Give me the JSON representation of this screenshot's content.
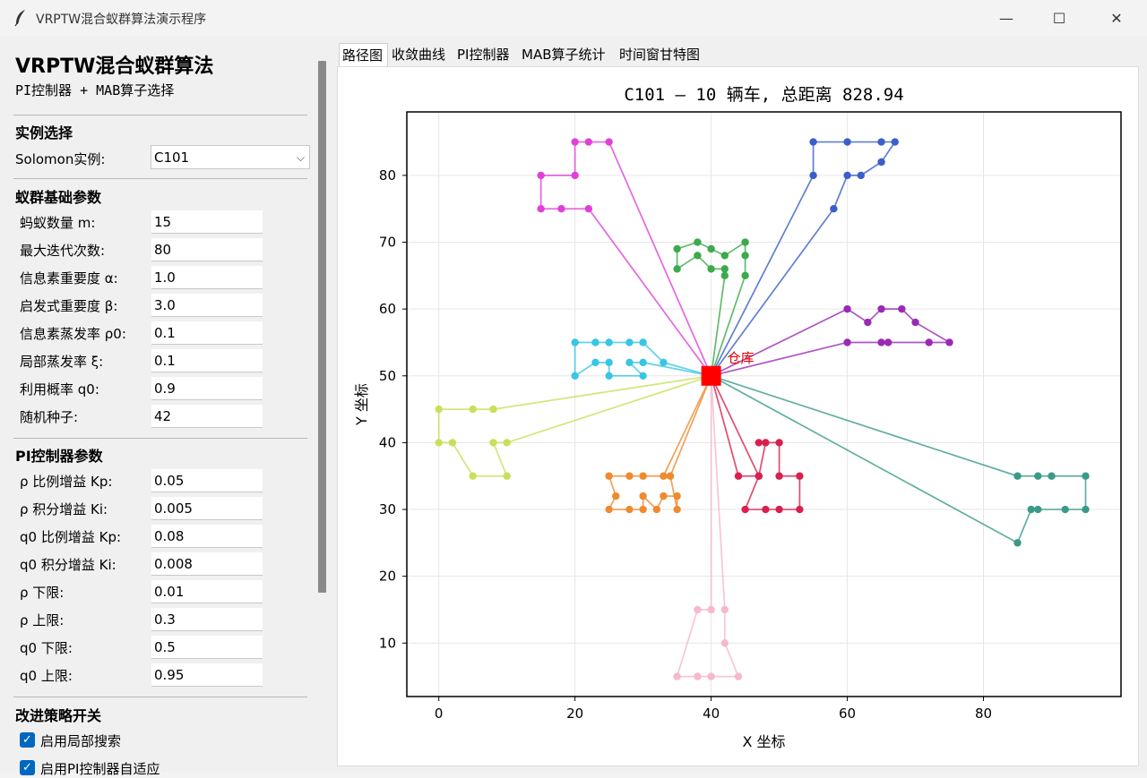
{
  "window": {
    "title": "VRPTW混合蚁群算法演示程序",
    "minimize": "—",
    "maximize": "☐",
    "close": "✕"
  },
  "panel": {
    "heading": "VRPTW混合蚁群算法",
    "subheading": "PI控制器 + MAB算子选择",
    "instance_section": "实例选择",
    "instance_label": "Solomon实例:",
    "instance_value": "C101",
    "aco_section": "蚁群基础参数",
    "aco_params": [
      {
        "label": "蚂蚁数量 m:",
        "value": "15"
      },
      {
        "label": "最大迭代次数:",
        "value": "80"
      },
      {
        "label": "信息素重要度 α:",
        "value": "1.0"
      },
      {
        "label": "启发式重要度 β:",
        "value": "3.0"
      },
      {
        "label": "信息素蒸发率 ρ0:",
        "value": "0.1"
      },
      {
        "label": "局部蒸发率 ξ:",
        "value": "0.1"
      },
      {
        "label": "利用概率 q0:",
        "value": "0.9"
      },
      {
        "label": "随机种子:",
        "value": "42"
      }
    ],
    "pi_section": "PI控制器参数",
    "pi_params": [
      {
        "label": "ρ 比例增益 Kp:",
        "value": "0.05"
      },
      {
        "label": "ρ 积分增益 Ki:",
        "value": "0.005"
      },
      {
        "label": "q0 比例增益 Kp:",
        "value": "0.08"
      },
      {
        "label": "q0 积分增益 Ki:",
        "value": "0.008"
      },
      {
        "label": "ρ 下限:",
        "value": "0.01"
      },
      {
        "label": "ρ 上限:",
        "value": "0.3"
      },
      {
        "label": "q0 下限:",
        "value": "0.5"
      },
      {
        "label": "q0 上限:",
        "value": "0.95"
      }
    ],
    "strategy_section": "改进策略开关",
    "checkboxes": [
      {
        "label": "启用局部搜索",
        "checked": true
      },
      {
        "label": "启用PI控制器自适应",
        "checked": true
      }
    ]
  },
  "tabs": [
    "路径图",
    "收敛曲线",
    "PI控制器",
    "MAB算子统计",
    "时间窗甘特图"
  ],
  "chart_data": {
    "type": "scatter",
    "title": "C101 — 10 辆车, 总距离 828.94",
    "xlabel": "X 坐标",
    "ylabel": "Y 坐标",
    "xlim": [
      -4.7,
      100.2
    ],
    "ylim": [
      2.0,
      89.5
    ],
    "xticks": [
      0,
      20,
      40,
      60,
      80
    ],
    "yticks": [
      10,
      20,
      30,
      40,
      50,
      60,
      70,
      80
    ],
    "grid": true,
    "depot": {
      "x": 40,
      "y": 50,
      "label": "仓库",
      "color": "#ff0000"
    },
    "routes": [
      {
        "color": "#e040d8",
        "points": [
          [
            40,
            50
          ],
          [
            25,
            85
          ],
          [
            22,
            85
          ],
          [
            20,
            85
          ],
          [
            20,
            80
          ],
          [
            15,
            80
          ],
          [
            15,
            75
          ],
          [
            18,
            75
          ],
          [
            22,
            75
          ],
          [
            40,
            50
          ]
        ]
      },
      {
        "color": "#3a5fc8",
        "points": [
          [
            40,
            50
          ],
          [
            55,
            80
          ],
          [
            55,
            85
          ],
          [
            60,
            85
          ],
          [
            65,
            85
          ],
          [
            67,
            85
          ],
          [
            65,
            82
          ],
          [
            62,
            80
          ],
          [
            60,
            80
          ],
          [
            58,
            75
          ],
          [
            40,
            50
          ]
        ]
      },
      {
        "color": "#3aaa4a",
        "points": [
          [
            40,
            50
          ],
          [
            42,
            65
          ],
          [
            42,
            66
          ],
          [
            40,
            66
          ],
          [
            38,
            68
          ],
          [
            35,
            66
          ],
          [
            35,
            69
          ],
          [
            38,
            70
          ],
          [
            40,
            69
          ],
          [
            42,
            68
          ],
          [
            45,
            70
          ],
          [
            45,
            68
          ],
          [
            45,
            65
          ],
          [
            40,
            50
          ]
        ]
      },
      {
        "color": "#9a2ab5",
        "points": [
          [
            40,
            50
          ],
          [
            60,
            60
          ],
          [
            63,
            58
          ],
          [
            65,
            60
          ],
          [
            68,
            60
          ],
          [
            70,
            58
          ],
          [
            75,
            55
          ],
          [
            72,
            55
          ],
          [
            66,
            55
          ],
          [
            65,
            55
          ],
          [
            60,
            55
          ],
          [
            40,
            50
          ]
        ]
      },
      {
        "color": "#38c6e4",
        "points": [
          [
            40,
            50
          ],
          [
            33,
            52
          ],
          [
            30,
            55
          ],
          [
            28,
            55
          ],
          [
            25,
            55
          ],
          [
            23,
            55
          ],
          [
            20,
            55
          ],
          [
            20,
            50
          ],
          [
            23,
            52
          ],
          [
            25,
            52
          ],
          [
            25,
            50
          ],
          [
            30,
            50
          ],
          [
            28,
            52
          ],
          [
            30,
            52
          ],
          [
            40,
            50
          ]
        ]
      },
      {
        "color": "#c7e05a",
        "points": [
          [
            40,
            50
          ],
          [
            8,
            45
          ],
          [
            5,
            45
          ],
          [
            0,
            45
          ],
          [
            0,
            40
          ],
          [
            2,
            40
          ],
          [
            5,
            35
          ],
          [
            10,
            35
          ],
          [
            8,
            40
          ],
          [
            10,
            40
          ],
          [
            40,
            50
          ]
        ]
      },
      {
        "color": "#ef8a2e",
        "points": [
          [
            40,
            50
          ],
          [
            33,
            35
          ],
          [
            30,
            35
          ],
          [
            28,
            35
          ],
          [
            25,
            35
          ],
          [
            26,
            32
          ],
          [
            25,
            30
          ],
          [
            28,
            30
          ],
          [
            30,
            30
          ],
          [
            30,
            32
          ],
          [
            32,
            30
          ],
          [
            33,
            32
          ],
          [
            35,
            32
          ],
          [
            35,
            30
          ],
          [
            34,
            35
          ],
          [
            40,
            50
          ]
        ]
      },
      {
        "color": "#d82050",
        "points": [
          [
            40,
            50
          ],
          [
            44,
            35
          ],
          [
            47,
            35
          ],
          [
            48,
            40
          ],
          [
            47,
            40
          ],
          [
            50,
            40
          ],
          [
            50,
            35
          ],
          [
            53,
            35
          ],
          [
            53,
            30
          ],
          [
            50,
            30
          ],
          [
            48,
            30
          ],
          [
            45,
            30
          ],
          [
            47,
            35
          ],
          [
            40,
            50
          ]
        ]
      },
      {
        "color": "#3a9a8a",
        "points": [
          [
            40,
            50
          ],
          [
            85,
            35
          ],
          [
            88,
            35
          ],
          [
            90,
            35
          ],
          [
            95,
            35
          ],
          [
            95,
            30
          ],
          [
            92,
            30
          ],
          [
            88,
            30
          ],
          [
            87,
            30
          ],
          [
            85,
            25
          ],
          [
            40,
            50
          ]
        ]
      },
      {
        "color": "#f5b8cc",
        "points": [
          [
            40,
            50
          ],
          [
            40,
            15
          ],
          [
            38,
            15
          ],
          [
            35,
            5
          ],
          [
            38,
            5
          ],
          [
            40,
            5
          ],
          [
            44,
            5
          ],
          [
            42,
            10
          ],
          [
            42,
            15
          ],
          [
            40,
            50
          ]
        ]
      }
    ]
  }
}
